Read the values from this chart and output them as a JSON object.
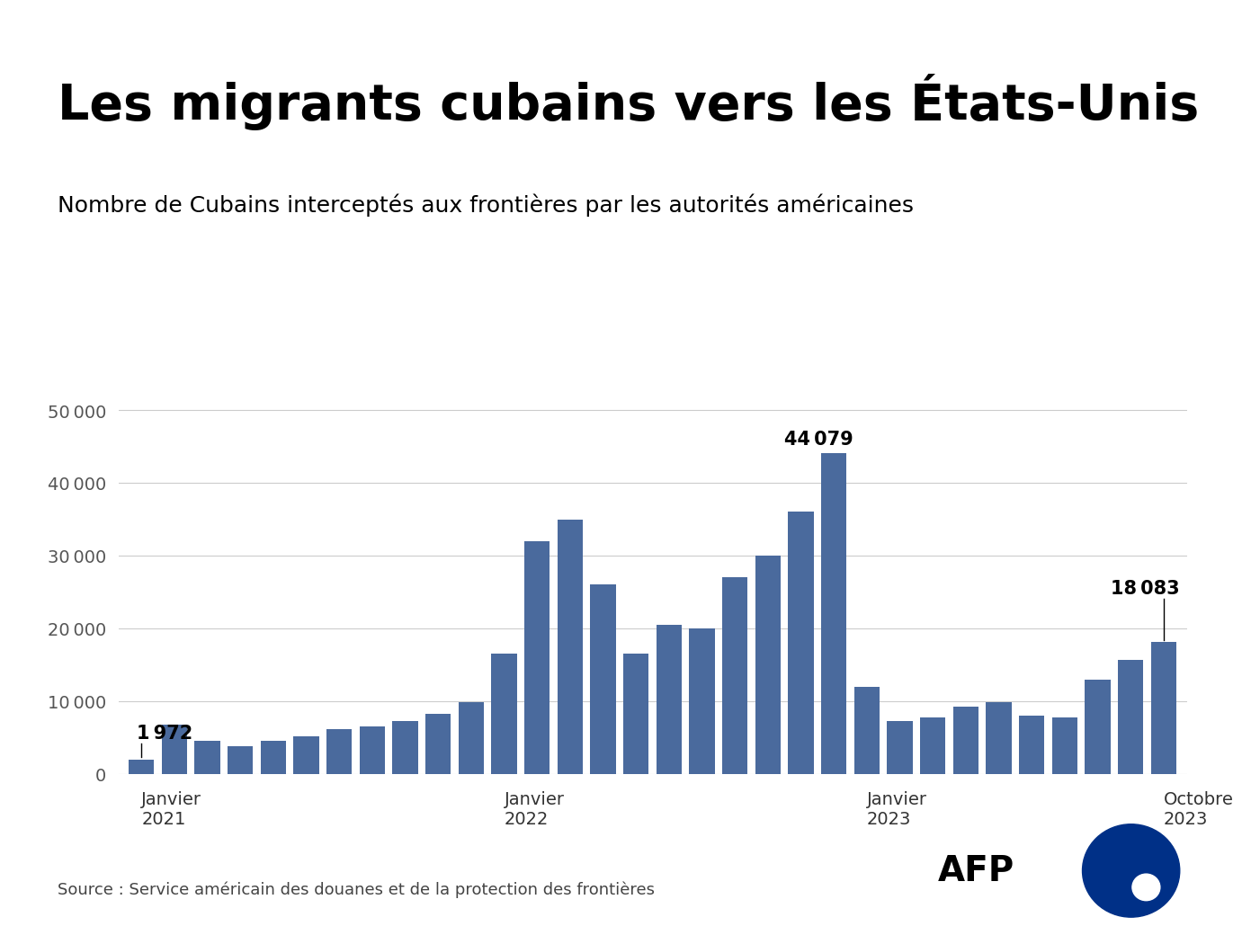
{
  "title": "Les migrants cubains vers les États-Unis",
  "subtitle": "Nombre de Cubains interceptés aux frontières par les autorités américaines",
  "source": "Source : Service américain des douanes et de la protection des frontières",
  "bar_color": "#4a6a9d",
  "background_color": "#ffffff",
  "values": [
    1972,
    6800,
    4500,
    3800,
    4500,
    5200,
    6200,
    6500,
    7200,
    8200,
    9800,
    16500,
    32000,
    35000,
    26000,
    16500,
    20500,
    20000,
    27000,
    30000,
    36000,
    44079,
    12000,
    7200,
    7800,
    9200,
    9800,
    8000,
    7800,
    13000,
    15700,
    18083
  ],
  "x_tick_positions": [
    0,
    11,
    22,
    31
  ],
  "x_tick_labels": [
    "Janvier\n2021",
    "Janvier\n2022",
    "Janvier\n2023",
    "Octobre\n2023"
  ],
  "ylim": [
    0,
    52000
  ],
  "yticks": [
    0,
    10000,
    20000,
    30000,
    40000,
    50000
  ],
  "annotation_first_value": "1 972",
  "annotation_first_idx": 0,
  "annotation_peak_value": "44 079",
  "annotation_peak_idx": 21,
  "annotation_last_value": "18 083",
  "annotation_last_idx": 31,
  "title_fontsize": 40,
  "subtitle_fontsize": 18,
  "source_fontsize": 13,
  "afp_blue": "#003087",
  "top_stripe_color": "#111111"
}
